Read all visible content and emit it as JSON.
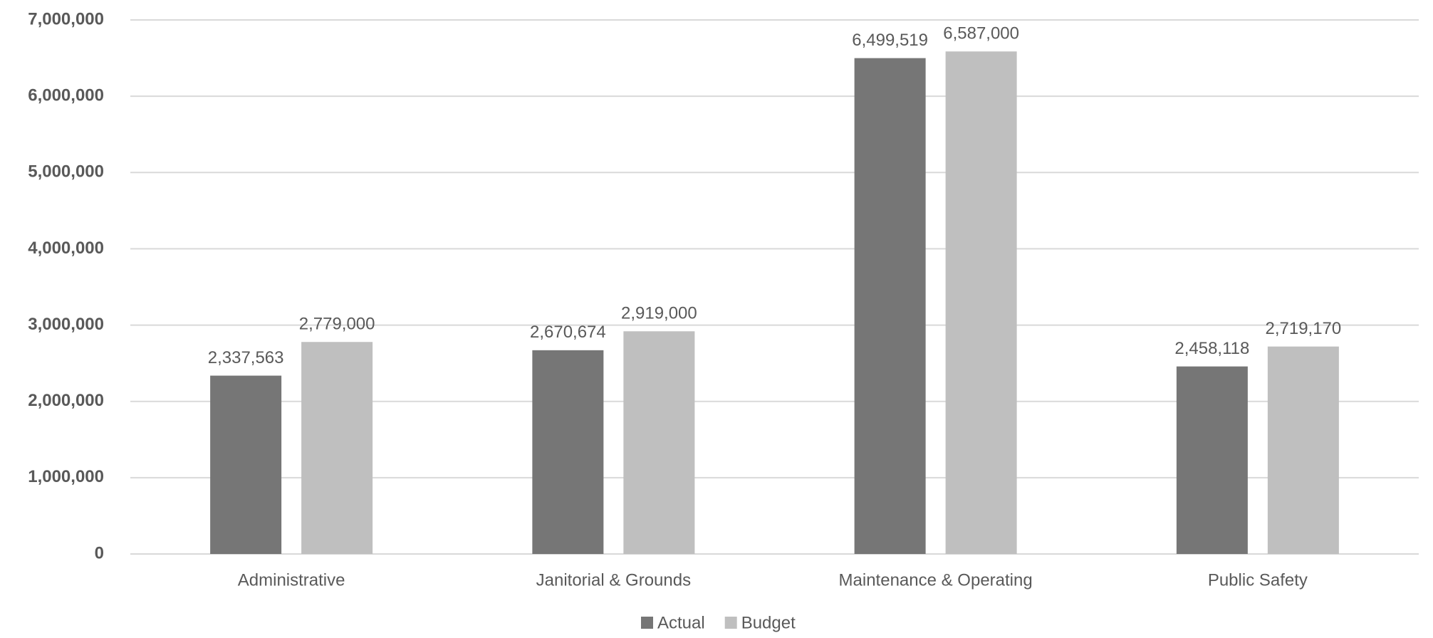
{
  "chart_data": {
    "type": "bar",
    "categories": [
      "Administrative",
      "Janitorial & Grounds",
      "Maintenance & Operating",
      "Public Safety"
    ],
    "series": [
      {
        "name": "Actual",
        "color": "#767676",
        "values": [
          2337563,
          2670674,
          6499519,
          2458118
        ],
        "value_labels": [
          "2,337,563",
          "2,670,674",
          "6,499,519",
          "2,458,118"
        ]
      },
      {
        "name": "Budget",
        "color": "#bfbfbf",
        "values": [
          2779000,
          2919000,
          6587000,
          2719170
        ],
        "value_labels": [
          "2,779,000",
          "2,919,000",
          "6,587,000",
          "2,719,170"
        ]
      }
    ],
    "ylim": [
      0,
      7000000
    ],
    "yticks": [
      0,
      {
        "value": 1000000,
        "label": "1,000,000"
      },
      {
        "value": 2000000,
        "label": "2,000,000"
      },
      {
        "value": 3000000,
        "label": "3,000,000"
      },
      {
        "value": 4000000,
        "label": "4,000,000"
      },
      {
        "value": 5000000,
        "label": "5,000,000"
      },
      {
        "value": 6000000,
        "label": "6,000,000"
      },
      {
        "value": 7000000,
        "label": "7,000,000"
      }
    ],
    "grid": true,
    "legend": "bottom"
  }
}
